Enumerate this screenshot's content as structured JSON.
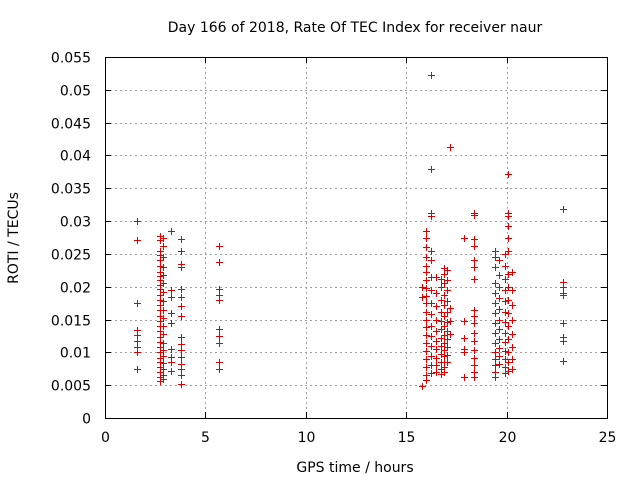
{
  "chart_data": {
    "type": "scatter",
    "title": "Day 166 of 2018, Rate Of TEC Index for receiver naur",
    "xlabel": "GPS time / hours",
    "ylabel": "ROTI / TECUs",
    "xlim": [
      0,
      25
    ],
    "ylim": [
      0,
      0.055
    ],
    "xticks": [
      0,
      5,
      10,
      15,
      20,
      25
    ],
    "yticks": [
      0,
      0.005,
      0.01,
      0.015,
      0.02,
      0.025,
      0.03,
      0.035,
      0.04,
      0.045,
      0.05,
      0.055
    ],
    "xtick_labels": [
      "0",
      "5",
      "10",
      "15",
      "20",
      "25"
    ],
    "ytick_labels": [
      "0",
      "0.005",
      "0.01",
      "0.015",
      "0.02",
      "0.025",
      "0.03",
      "0.035",
      "0.04",
      "0.045",
      "0.05",
      "0.055"
    ],
    "grid": true,
    "marker": "+",
    "color": "#e00000",
    "series": [
      {
        "name": "ROTI",
        "points": [
          [
            1.6,
            0.03
          ],
          [
            1.6,
            0.0271
          ],
          [
            1.6,
            0.0175
          ],
          [
            1.6,
            0.0134
          ],
          [
            1.6,
            0.0126
          ],
          [
            1.6,
            0.0117
          ],
          [
            1.6,
            0.0108
          ],
          [
            1.6,
            0.01
          ],
          [
            1.6,
            0.0075
          ],
          [
            2.75,
            0.0277
          ],
          [
            2.75,
            0.0271
          ],
          [
            2.75,
            0.0255
          ],
          [
            2.75,
            0.0248
          ],
          [
            2.75,
            0.024
          ],
          [
            2.75,
            0.0232
          ],
          [
            2.75,
            0.0222
          ],
          [
            2.75,
            0.0216
          ],
          [
            2.75,
            0.021
          ],
          [
            2.75,
            0.0203
          ],
          [
            2.75,
            0.0196
          ],
          [
            2.75,
            0.0188
          ],
          [
            2.75,
            0.018
          ],
          [
            2.75,
            0.0172
          ],
          [
            2.75,
            0.0164
          ],
          [
            2.75,
            0.0156
          ],
          [
            2.75,
            0.0148
          ],
          [
            2.75,
            0.014
          ],
          [
            2.75,
            0.0132
          ],
          [
            2.75,
            0.0124
          ],
          [
            2.75,
            0.0116
          ],
          [
            2.75,
            0.0108
          ],
          [
            2.75,
            0.01
          ],
          [
            2.75,
            0.0092
          ],
          [
            2.75,
            0.0085
          ],
          [
            2.75,
            0.0078
          ],
          [
            2.75,
            0.007
          ],
          [
            2.75,
            0.0063
          ],
          [
            2.75,
            0.0057
          ],
          [
            2.9,
            0.0275
          ],
          [
            2.9,
            0.0262
          ],
          [
            2.9,
            0.0245
          ],
          [
            2.9,
            0.023
          ],
          [
            2.9,
            0.0218
          ],
          [
            2.9,
            0.0205
          ],
          [
            2.9,
            0.0192
          ],
          [
            2.9,
            0.0178
          ],
          [
            2.9,
            0.0165
          ],
          [
            2.9,
            0.0152
          ],
          [
            2.9,
            0.014
          ],
          [
            2.9,
            0.0128
          ],
          [
            2.9,
            0.0115
          ],
          [
            2.9,
            0.0104
          ],
          [
            2.9,
            0.0094
          ],
          [
            2.9,
            0.0084
          ],
          [
            2.9,
            0.0074
          ],
          [
            2.9,
            0.0066
          ],
          [
            2.9,
            0.006
          ],
          [
            3.3,
            0.0285
          ],
          [
            3.3,
            0.0195
          ],
          [
            3.3,
            0.0185
          ],
          [
            3.3,
            0.016
          ],
          [
            3.3,
            0.0145
          ],
          [
            3.3,
            0.0105
          ],
          [
            3.3,
            0.0093
          ],
          [
            3.3,
            0.0085
          ],
          [
            3.3,
            0.0072
          ],
          [
            3.8,
            0.0272
          ],
          [
            3.8,
            0.0255
          ],
          [
            3.8,
            0.0235
          ],
          [
            3.8,
            0.023
          ],
          [
            3.8,
            0.0197
          ],
          [
            3.8,
            0.0185
          ],
          [
            3.8,
            0.017
          ],
          [
            3.8,
            0.0155
          ],
          [
            3.8,
            0.0123
          ],
          [
            3.8,
            0.0113
          ],
          [
            3.8,
            0.0103
          ],
          [
            3.8,
            0.0093
          ],
          [
            3.8,
            0.0083
          ],
          [
            3.8,
            0.0075
          ],
          [
            3.8,
            0.0065
          ],
          [
            3.8,
            0.0052
          ],
          [
            5.7,
            0.0262
          ],
          [
            5.7,
            0.0238
          ],
          [
            5.7,
            0.0196
          ],
          [
            5.7,
            0.0188
          ],
          [
            5.7,
            0.018
          ],
          [
            5.7,
            0.0135
          ],
          [
            5.7,
            0.0125
          ],
          [
            5.7,
            0.0115
          ],
          [
            5.7,
            0.0085
          ],
          [
            5.7,
            0.0075
          ],
          [
            15.8,
            0.0048
          ],
          [
            15.8,
            0.02
          ],
          [
            15.8,
            0.0185
          ],
          [
            16.0,
            0.0285
          ],
          [
            16.0,
            0.0275
          ],
          [
            16.0,
            0.026
          ],
          [
            16.0,
            0.0245
          ],
          [
            16.0,
            0.0232
          ],
          [
            16.0,
            0.0222
          ],
          [
            16.0,
            0.021
          ],
          [
            16.0,
            0.0198
          ],
          [
            16.0,
            0.0186
          ],
          [
            16.0,
            0.0175
          ],
          [
            16.0,
            0.0162
          ],
          [
            16.0,
            0.015
          ],
          [
            16.0,
            0.0138
          ],
          [
            16.0,
            0.0126
          ],
          [
            16.0,
            0.0114
          ],
          [
            16.0,
            0.0102
          ],
          [
            16.0,
            0.009
          ],
          [
            16.0,
            0.0078
          ],
          [
            16.0,
            0.0066
          ],
          [
            16.0,
            0.0058
          ],
          [
            16.25,
            0.0523
          ],
          [
            16.25,
            0.038
          ],
          [
            16.25,
            0.0312
          ],
          [
            16.25,
            0.0308
          ],
          [
            16.25,
            0.0255
          ],
          [
            16.25,
            0.024
          ],
          [
            16.25,
            0.0215
          ],
          [
            16.25,
            0.0195
          ],
          [
            16.25,
            0.0175
          ],
          [
            16.25,
            0.0158
          ],
          [
            16.25,
            0.014
          ],
          [
            16.25,
            0.0125
          ],
          [
            16.25,
            0.011
          ],
          [
            16.25,
            0.0095
          ],
          [
            16.25,
            0.008
          ],
          [
            16.25,
            0.0068
          ],
          [
            16.5,
            0.0215
          ],
          [
            16.5,
            0.019
          ],
          [
            16.5,
            0.017
          ],
          [
            16.5,
            0.015
          ],
          [
            16.5,
            0.0133
          ],
          [
            16.5,
            0.0118
          ],
          [
            16.5,
            0.0105
          ],
          [
            16.5,
            0.0092
          ],
          [
            16.5,
            0.008
          ],
          [
            16.5,
            0.007
          ],
          [
            16.75,
            0.0212
          ],
          [
            16.75,
            0.02
          ],
          [
            16.75,
            0.018
          ],
          [
            16.75,
            0.0162
          ],
          [
            16.75,
            0.0148
          ],
          [
            16.75,
            0.0135
          ],
          [
            16.75,
            0.0122
          ],
          [
            16.75,
            0.011
          ],
          [
            16.75,
            0.0098
          ],
          [
            16.75,
            0.0086
          ],
          [
            16.75,
            0.0075
          ],
          [
            16.75,
            0.0067
          ],
          [
            16.9,
            0.0228
          ],
          [
            16.9,
            0.022
          ],
          [
            16.9,
            0.0205
          ],
          [
            16.9,
            0.0188
          ],
          [
            16.9,
            0.0172
          ],
          [
            16.9,
            0.0156
          ],
          [
            16.9,
            0.014
          ],
          [
            16.9,
            0.0127
          ],
          [
            16.9,
            0.0115
          ],
          [
            16.9,
            0.0104
          ],
          [
            16.9,
            0.0094
          ],
          [
            16.9,
            0.0086
          ],
          [
            16.9,
            0.0078
          ],
          [
            16.9,
            0.007
          ],
          [
            17.05,
            0.0225
          ],
          [
            17.05,
            0.021
          ],
          [
            17.05,
            0.0195
          ],
          [
            17.05,
            0.0178
          ],
          [
            17.05,
            0.0162
          ],
          [
            17.05,
            0.0146
          ],
          [
            17.05,
            0.0132
          ],
          [
            17.05,
            0.012
          ],
          [
            17.05,
            0.0108
          ],
          [
            17.05,
            0.0096
          ],
          [
            17.05,
            0.0086
          ],
          [
            17.2,
            0.0413
          ],
          [
            17.2,
            0.0168
          ],
          [
            17.2,
            0.0148
          ],
          [
            17.2,
            0.0128
          ],
          [
            17.9,
            0.0275
          ],
          [
            17.9,
            0.0148
          ],
          [
            17.9,
            0.0122
          ],
          [
            17.9,
            0.0105
          ],
          [
            17.9,
            0.01
          ],
          [
            17.9,
            0.0063
          ],
          [
            18.4,
            0.0312
          ],
          [
            18.4,
            0.031
          ],
          [
            18.4,
            0.0272
          ],
          [
            18.4,
            0.0262
          ],
          [
            18.4,
            0.024
          ],
          [
            18.4,
            0.023
          ],
          [
            18.4,
            0.0212
          ],
          [
            18.4,
            0.0165
          ],
          [
            18.4,
            0.0155
          ],
          [
            18.4,
            0.0145
          ],
          [
            18.4,
            0.013
          ],
          [
            18.4,
            0.0118
          ],
          [
            18.4,
            0.0103
          ],
          [
            18.4,
            0.0092
          ],
          [
            18.4,
            0.008
          ],
          [
            18.4,
            0.007
          ],
          [
            18.4,
            0.0062
          ],
          [
            19.4,
            0.0255
          ],
          [
            19.4,
            0.0245
          ],
          [
            19.4,
            0.023
          ],
          [
            19.4,
            0.0205
          ],
          [
            19.4,
            0.019
          ],
          [
            19.4,
            0.0175
          ],
          [
            19.4,
            0.016
          ],
          [
            19.4,
            0.0145
          ],
          [
            19.4,
            0.013
          ],
          [
            19.4,
            0.0115
          ],
          [
            19.4,
            0.01
          ],
          [
            19.4,
            0.009
          ],
          [
            19.4,
            0.008
          ],
          [
            19.4,
            0.007
          ],
          [
            19.4,
            0.0062
          ],
          [
            19.6,
            0.024
          ],
          [
            19.6,
            0.0218
          ],
          [
            19.6,
            0.02
          ],
          [
            19.6,
            0.0183
          ],
          [
            19.6,
            0.0166
          ],
          [
            19.6,
            0.015
          ],
          [
            19.6,
            0.0135
          ],
          [
            19.6,
            0.012
          ],
          [
            19.6,
            0.0106
          ],
          [
            19.6,
            0.0094
          ],
          [
            19.6,
            0.0083
          ],
          [
            19.9,
            0.025
          ],
          [
            19.9,
            0.0232
          ],
          [
            19.9,
            0.0212
          ],
          [
            19.9,
            0.0195
          ],
          [
            19.9,
            0.0178
          ],
          [
            19.9,
            0.0162
          ],
          [
            19.9,
            0.0146
          ],
          [
            19.9,
            0.013
          ],
          [
            19.9,
            0.0116
          ],
          [
            19.9,
            0.0102
          ],
          [
            19.9,
            0.009
          ],
          [
            19.9,
            0.0078
          ],
          [
            19.9,
            0.0068
          ],
          [
            20.05,
            0.0372
          ],
          [
            20.05,
            0.0313
          ],
          [
            20.05,
            0.0308
          ],
          [
            20.05,
            0.0292
          ],
          [
            20.05,
            0.0275
          ],
          [
            20.05,
            0.0255
          ],
          [
            20.05,
            0.022
          ],
          [
            20.05,
            0.02
          ],
          [
            20.05,
            0.018
          ],
          [
            20.05,
            0.016
          ],
          [
            20.05,
            0.014
          ],
          [
            20.05,
            0.012
          ],
          [
            20.05,
            0.01
          ],
          [
            20.05,
            0.0085
          ],
          [
            20.05,
            0.0072
          ],
          [
            20.25,
            0.0222
          ],
          [
            20.25,
            0.0195
          ],
          [
            20.25,
            0.0172
          ],
          [
            20.25,
            0.015
          ],
          [
            20.25,
            0.0128
          ],
          [
            20.25,
            0.0108
          ],
          [
            20.25,
            0.009
          ],
          [
            20.25,
            0.0075
          ],
          [
            22.8,
            0.0318
          ],
          [
            22.8,
            0.0207
          ],
          [
            22.8,
            0.02
          ],
          [
            22.8,
            0.019
          ],
          [
            22.8,
            0.0188
          ],
          [
            22.8,
            0.0145
          ],
          [
            22.8,
            0.0123
          ],
          [
            22.8,
            0.0118
          ],
          [
            22.8,
            0.0087
          ]
        ]
      }
    ]
  }
}
